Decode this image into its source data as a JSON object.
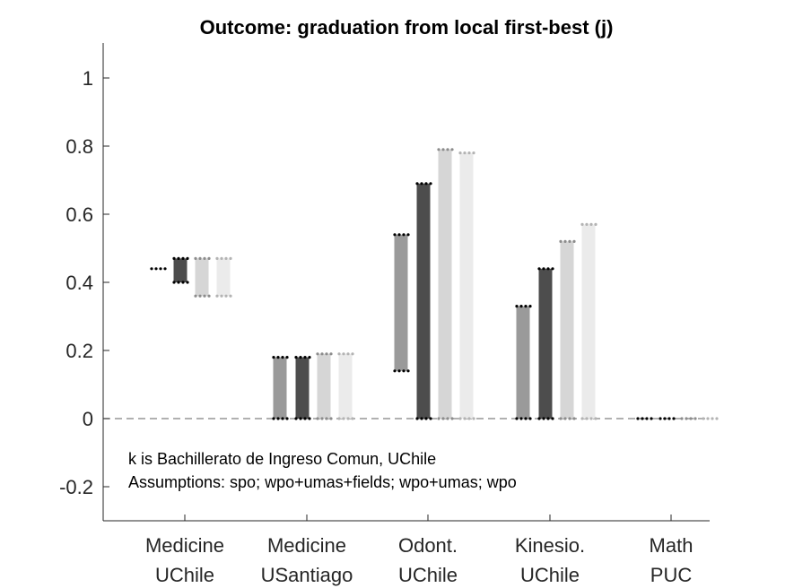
{
  "chart_data": {
    "type": "bar",
    "title": "Outcome: graduation from local first-best (j)",
    "xlabel": "",
    "ylabel": "",
    "ylim": [
      -0.3,
      1.1
    ],
    "yticks": [
      "-0.2",
      "0",
      "0.2",
      "0.4",
      "0.6",
      "0.8",
      "1"
    ],
    "grid": false,
    "categories": [
      {
        "line1": "Medicine",
        "line2": "UChile"
      },
      {
        "line1": "Medicine",
        "line2": "USantiago"
      },
      {
        "line1": "Odont.",
        "line2": "UChile"
      },
      {
        "line1": "Kinesio.",
        "line2": "UChile"
      },
      {
        "line1": "Math",
        "line2": "PUC"
      }
    ],
    "series": [
      {
        "color": "#9a9a9a",
        "dot_color": "#000000",
        "ranges": [
          [
            0.44,
            0.44
          ],
          [
            0.0,
            0.18
          ],
          [
            0.14,
            0.54
          ],
          [
            0.0,
            0.33
          ],
          [
            0.0,
            0.0
          ]
        ]
      },
      {
        "color": "#4d4d4d",
        "dot_color": "#000000",
        "ranges": [
          [
            0.4,
            0.47
          ],
          [
            0.0,
            0.18
          ],
          [
            0.0,
            0.69
          ],
          [
            0.0,
            0.44
          ],
          [
            0.0,
            0.0
          ]
        ]
      },
      {
        "color": "#d6d6d6",
        "dot_color": "#8c8c8c",
        "ranges": [
          [
            0.36,
            0.47
          ],
          [
            0.0,
            0.19
          ],
          [
            0.0,
            0.79
          ],
          [
            0.0,
            0.52
          ],
          [
            0.0,
            0.0
          ]
        ]
      },
      {
        "color": "#ebebeb",
        "dot_color": "#b3b3b3",
        "ranges": [
          [
            0.36,
            0.47
          ],
          [
            0.0,
            0.19
          ],
          [
            0.0,
            0.78
          ],
          [
            0.0,
            0.57
          ],
          [
            0.0,
            0.0
          ]
        ]
      }
    ],
    "zero_line": {
      "value": 0,
      "style": "dashed"
    },
    "annotations": [
      "k is Bachillerato de Ingreso Comun, UChile",
      "Assumptions: spo; wpo+umas+fields; wpo+umas; wpo"
    ]
  }
}
